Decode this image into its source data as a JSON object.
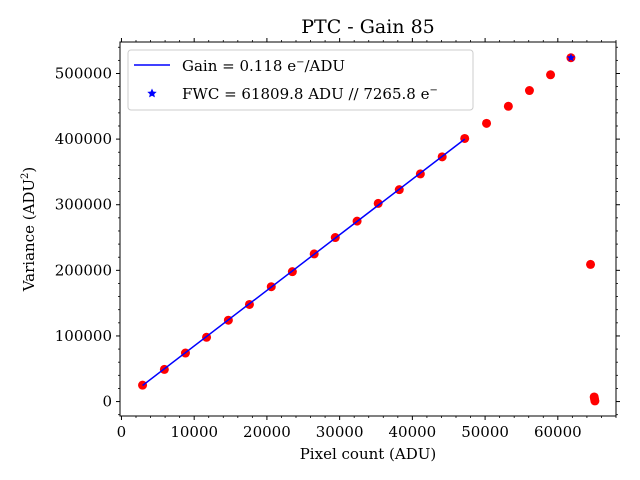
{
  "chart_data": {
    "type": "scatter",
    "title": "PTC - Gain 85",
    "xlabel": "Pixel count (ADU)",
    "ylabel": "Variance (ADU",
    "ylabel_sup": "2",
    "ylabel_tail": ")",
    "xlim": [
      -200,
      68000
    ],
    "ylim": [
      -22000,
      548000
    ],
    "xticks": [
      0,
      10000,
      20000,
      30000,
      40000,
      50000,
      60000
    ],
    "yticks": [
      0,
      100000,
      200000,
      300000,
      400000,
      500000
    ],
    "xtick_labels": [
      "0",
      "10000",
      "20000",
      "30000",
      "40000",
      "50000",
      "60000"
    ],
    "ytick_labels": [
      "0",
      "100000",
      "200000",
      "300000",
      "400000",
      "500000"
    ],
    "legend_position": "top-left",
    "series": [
      {
        "kind": "line",
        "color": "#0000ff",
        "legend": "Gain = 0.118 e",
        "legend_sup": "−",
        "legend_tail": "/ADU",
        "x": [
          2900,
          47200
        ],
        "y": [
          24500,
          400000
        ]
      },
      {
        "kind": "scatter",
        "color": "#ff0000",
        "x": [
          2900,
          5900,
          8800,
          11700,
          14700,
          17600,
          20600,
          23500,
          26500,
          29400,
          32400,
          35300,
          38200,
          41100,
          44100,
          47200,
          50200,
          53200,
          56100,
          59000,
          61800,
          64500,
          65000,
          65050,
          65100
        ],
        "y": [
          25000,
          49000,
          74000,
          98000,
          124000,
          148000,
          175000,
          198000,
          225000,
          250000,
          275000,
          302000,
          323000,
          347000,
          373000,
          401000,
          424000,
          450000,
          474000,
          498000,
          524000,
          209000,
          7000,
          4000,
          1000
        ]
      },
      {
        "kind": "star",
        "color": "#0000ff",
        "legend": "FWC = 61809.8 ADU // 7265.8 e",
        "legend_sup": "−",
        "x": [
          61809.8
        ],
        "y": [
          524000
        ]
      }
    ]
  }
}
